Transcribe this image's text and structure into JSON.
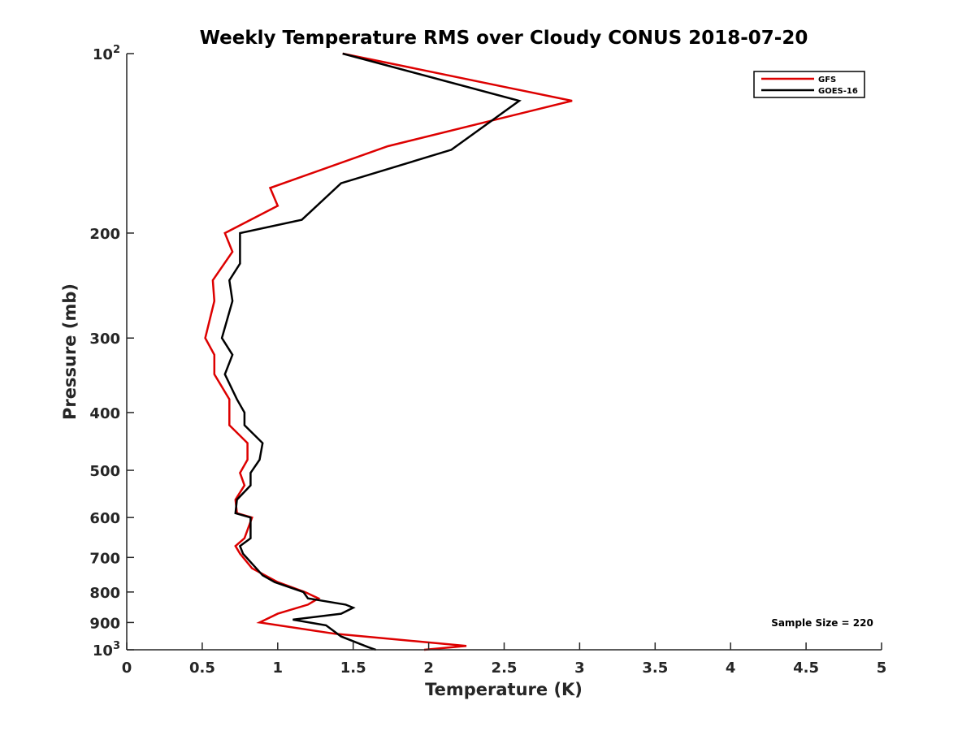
{
  "chart_data": {
    "type": "line",
    "title": "Weekly Temperature RMS over Cloudy CONUS 2018-07-20",
    "xlabel": "Temperature (K)",
    "ylabel": "Pressure (mb)",
    "xlim": [
      0,
      5
    ],
    "ylim": [
      100,
      1000
    ],
    "y_scale": "log",
    "y_reversed": true,
    "grid": false,
    "legend_position": "top-right",
    "x_ticks": [
      {
        "value": 0,
        "label": "0"
      },
      {
        "value": 0.5,
        "label": "0.5"
      },
      {
        "value": 1,
        "label": "1"
      },
      {
        "value": 1.5,
        "label": "1.5"
      },
      {
        "value": 2,
        "label": "2"
      },
      {
        "value": 2.5,
        "label": "2.5"
      },
      {
        "value": 3,
        "label": "3"
      },
      {
        "value": 3.5,
        "label": "3.5"
      },
      {
        "value": 4,
        "label": "4"
      },
      {
        "value": 4.5,
        "label": "4.5"
      },
      {
        "value": 5,
        "label": "5"
      }
    ],
    "y_ticks": [
      {
        "value": 100,
        "base": "10",
        "exp": "2"
      },
      {
        "value": 200,
        "label": "200"
      },
      {
        "value": 300,
        "label": "300"
      },
      {
        "value": 400,
        "label": "400"
      },
      {
        "value": 500,
        "label": "500"
      },
      {
        "value": 600,
        "label": "600"
      },
      {
        "value": 700,
        "label": "700"
      },
      {
        "value": 800,
        "label": "800"
      },
      {
        "value": 900,
        "label": "900"
      },
      {
        "value": 1000,
        "base": "10",
        "exp": "3"
      }
    ],
    "series": [
      {
        "name": "GFS",
        "color": "#dd0000",
        "points": [
          [
            1.43,
            100
          ],
          [
            2.95,
            120
          ],
          [
            1.73,
            143
          ],
          [
            0.95,
            168
          ],
          [
            1.0,
            180
          ],
          [
            0.65,
            200
          ],
          [
            0.7,
            215
          ],
          [
            0.57,
            240
          ],
          [
            0.58,
            260
          ],
          [
            0.52,
            300
          ],
          [
            0.58,
            320
          ],
          [
            0.58,
            345
          ],
          [
            0.68,
            380
          ],
          [
            0.68,
            400
          ],
          [
            0.68,
            420
          ],
          [
            0.8,
            450
          ],
          [
            0.8,
            480
          ],
          [
            0.75,
            505
          ],
          [
            0.78,
            530
          ],
          [
            0.72,
            560
          ],
          [
            0.73,
            590
          ],
          [
            0.83,
            600
          ],
          [
            0.78,
            650
          ],
          [
            0.72,
            670
          ],
          [
            0.75,
            690
          ],
          [
            0.83,
            730
          ],
          [
            1.0,
            770
          ],
          [
            1.18,
            800
          ],
          [
            1.27,
            820
          ],
          [
            1.2,
            840
          ],
          [
            1.0,
            870
          ],
          [
            0.88,
            900
          ],
          [
            1.38,
            940
          ],
          [
            2.25,
            985
          ],
          [
            1.97,
            1000
          ]
        ]
      },
      {
        "name": "GOES-16",
        "color": "#000000",
        "points": [
          [
            1.43,
            100
          ],
          [
            2.6,
            120
          ],
          [
            2.15,
            145
          ],
          [
            1.42,
            165
          ],
          [
            1.16,
            190
          ],
          [
            0.75,
            200
          ],
          [
            0.75,
            225
          ],
          [
            0.68,
            240
          ],
          [
            0.7,
            260
          ],
          [
            0.63,
            300
          ],
          [
            0.7,
            320
          ],
          [
            0.65,
            345
          ],
          [
            0.73,
            380
          ],
          [
            0.78,
            400
          ],
          [
            0.78,
            420
          ],
          [
            0.9,
            450
          ],
          [
            0.88,
            480
          ],
          [
            0.82,
            505
          ],
          [
            0.82,
            530
          ],
          [
            0.73,
            560
          ],
          [
            0.72,
            590
          ],
          [
            0.82,
            600
          ],
          [
            0.82,
            650
          ],
          [
            0.75,
            670
          ],
          [
            0.77,
            690
          ],
          [
            0.9,
            750
          ],
          [
            0.98,
            770
          ],
          [
            1.17,
            800
          ],
          [
            1.2,
            820
          ],
          [
            1.45,
            840
          ],
          [
            1.5,
            850
          ],
          [
            1.42,
            870
          ],
          [
            1.1,
            890
          ],
          [
            1.32,
            910
          ],
          [
            1.42,
            950
          ],
          [
            1.6,
            990
          ],
          [
            1.65,
            1000
          ]
        ]
      }
    ],
    "annotations": [
      {
        "text": "Sample Size = 220"
      }
    ]
  }
}
